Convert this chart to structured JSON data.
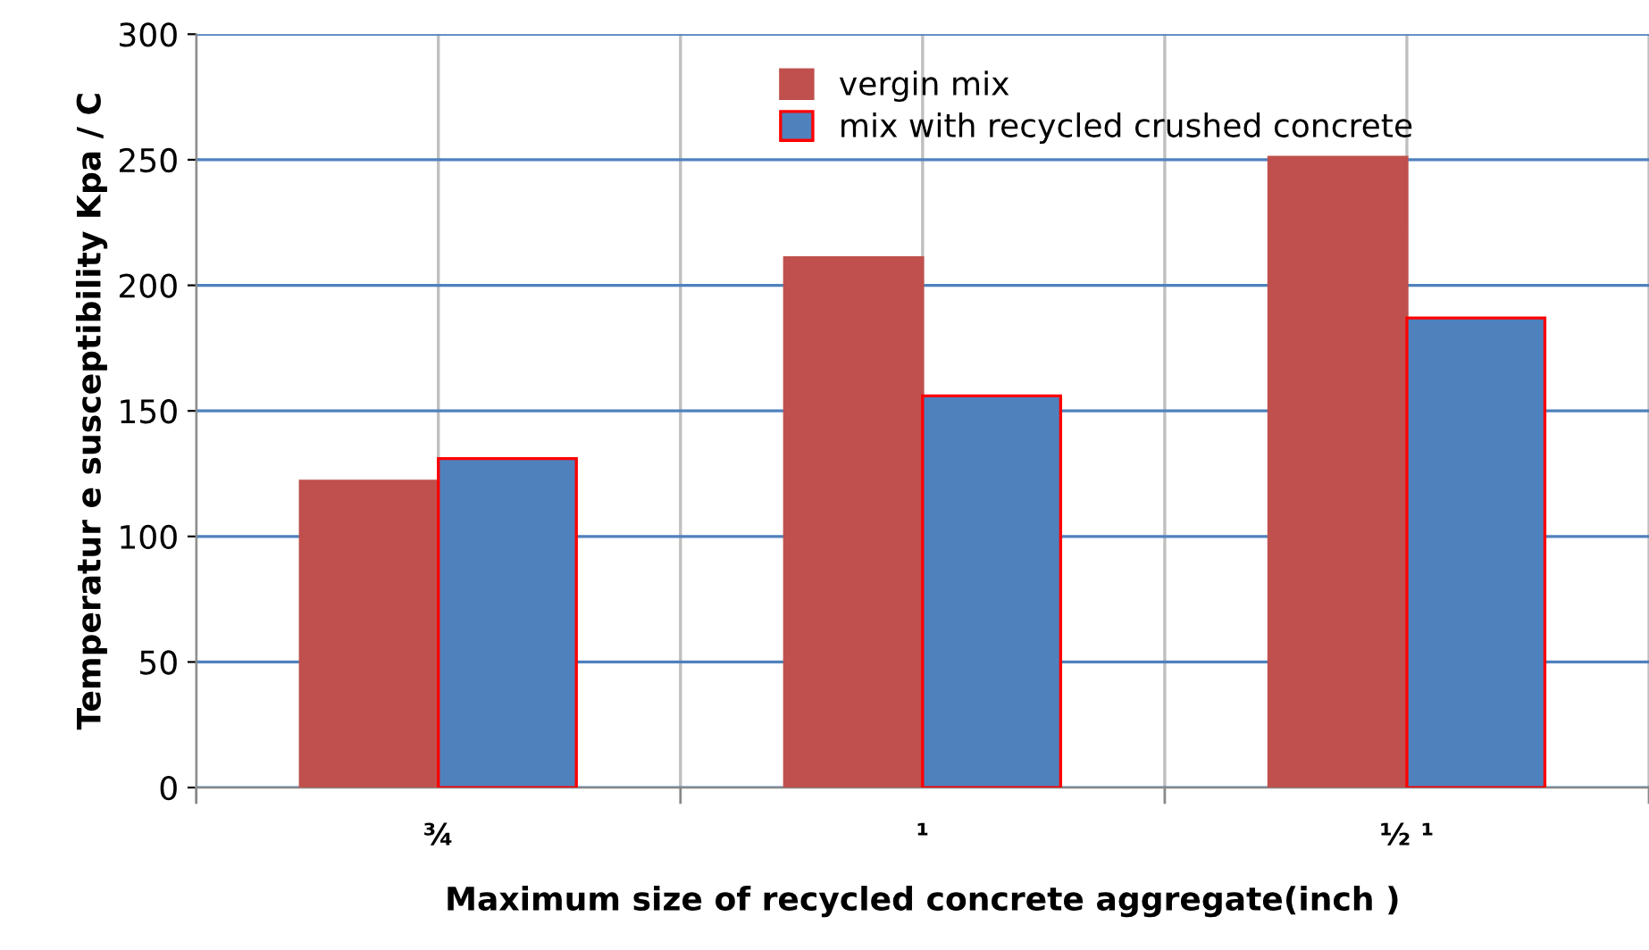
{
  "chart_data": {
    "type": "bar",
    "xlabel": "Maximum size of recycled concrete aggregate(inch )",
    "ylabel": "Temperatur e susceptibility Kpa / C",
    "categories": [
      "¾",
      "¹",
      "½ ¹"
    ],
    "series": [
      {
        "name": "vergin mix",
        "color": "#c0504d",
        "values": [
          122,
          211,
          251
        ]
      },
      {
        "name": "mix with recycled crushed concrete",
        "color": "#4f81bd",
        "values": [
          131,
          156,
          187
        ]
      }
    ],
    "ylim": [
      0,
      300
    ],
    "yticks": [
      0,
      50,
      100,
      150,
      200,
      250,
      300
    ],
    "grid": true,
    "legend": "top"
  }
}
